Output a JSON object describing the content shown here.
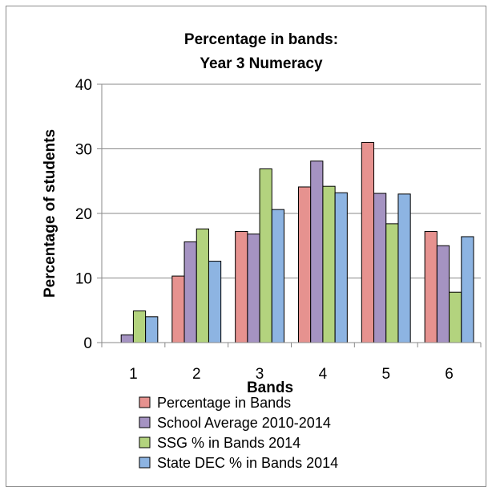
{
  "chart_data": {
    "type": "bar",
    "title_lines": [
      "Percentage in bands:",
      "Year 3 Numeracy"
    ],
    "xlabel": "Bands",
    "ylabel": "Percentage of students",
    "categories": [
      "1",
      "2",
      "3",
      "4",
      "5",
      "6"
    ],
    "yticks": [
      "0",
      "10",
      "20",
      "30",
      "40"
    ],
    "ylim": [
      0,
      40
    ],
    "grid": true,
    "legend_position": "bottom",
    "series": [
      {
        "name": "Percentage in Bands",
        "color": "#e6928f",
        "values": [
          0,
          10.3,
          17.2,
          24.1,
          31,
          17.2
        ]
      },
      {
        "name": "School Average 2010-2014",
        "color": "#a593c2",
        "values": [
          1.2,
          15.6,
          16.8,
          28.1,
          23.1,
          15
        ]
      },
      {
        "name": "SSG % in Bands 2014",
        "color": "#b3d37e",
        "values": [
          4.9,
          17.6,
          26.9,
          24.2,
          18.4,
          7.8
        ]
      },
      {
        "name": "State DEC % in Bands 2014",
        "color": "#8db4e2",
        "values": [
          4,
          12.6,
          20.6,
          23.2,
          23,
          16.4
        ]
      }
    ]
  }
}
